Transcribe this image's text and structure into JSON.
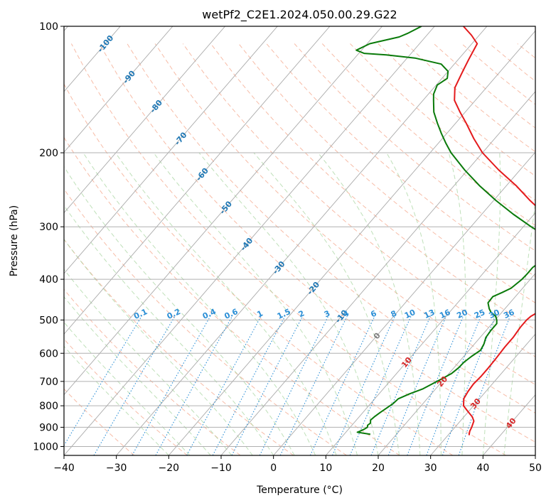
{
  "chart_data": {
    "type": "line",
    "subtype": "skew-T log-P thermodynamic diagram",
    "title": "wetPf2_C2E1.2024.050.00.29.G22",
    "xlabel": "Temperature (°C)",
    "ylabel": "Pressure (hPa)",
    "xlim": [
      -40,
      50
    ],
    "ylim_hpa": [
      1050,
      100
    ],
    "y_scale": "log",
    "grid": true,
    "x_ticks": [
      "−40",
      "−30",
      "−20",
      "−10",
      "0",
      "10",
      "20",
      "30",
      "40",
      "50"
    ],
    "y_ticks": [
      "100",
      "200",
      "300",
      "400",
      "500",
      "600",
      "700",
      "800",
      "900",
      "1000"
    ],
    "isotherm_labels": [
      "-100",
      "-90",
      "-80",
      "-70",
      "-60",
      "-50",
      "-40",
      "-30",
      "-20",
      "-10",
      "0",
      "10",
      "20",
      "30",
      "40"
    ],
    "mixing_ratio_labels": [
      "0.1",
      "0.2",
      "0.4",
      "0.6",
      "1",
      "1.5",
      "2",
      "3",
      "4",
      "6",
      "8",
      "10",
      "13",
      "16",
      "20",
      "25",
      "30",
      "36"
    ],
    "series": [
      {
        "role": "temperature",
        "color": "#e41a1c",
        "points": [
          [
            940,
            34.0
          ],
          [
            920,
            33.5
          ],
          [
            900,
            33.2
          ],
          [
            870,
            32.6
          ],
          [
            850,
            31.6
          ],
          [
            820,
            29.5
          ],
          [
            800,
            28.1
          ],
          [
            770,
            27.0
          ],
          [
            740,
            26.6
          ],
          [
            710,
            26.4
          ],
          [
            680,
            26.6
          ],
          [
            650,
            26.6
          ],
          [
            620,
            26.5
          ],
          [
            580,
            26.3
          ],
          [
            550,
            26.3
          ],
          [
            520,
            26.0
          ],
          [
            500,
            26.0
          ],
          [
            490,
            26.2
          ],
          [
            470,
            27.5
          ],
          [
            450,
            29.1
          ],
          [
            430,
            29.4
          ],
          [
            400,
            29.0
          ],
          [
            380,
            28.1
          ],
          [
            360,
            26.5
          ],
          [
            340,
            24.7
          ],
          [
            330,
            23.8
          ],
          [
            320,
            22.2
          ],
          [
            300,
            17.0
          ],
          [
            280,
            12.0
          ],
          [
            260,
            7.0
          ],
          [
            240,
            2.0
          ],
          [
            220,
            -4.0
          ],
          [
            200,
            -10.0
          ],
          [
            185,
            -14.0
          ],
          [
            170,
            -18.0
          ],
          [
            160,
            -21.0
          ],
          [
            150,
            -24.0
          ],
          [
            140,
            -26.0
          ],
          [
            130,
            -27.0
          ],
          [
            125,
            -27.5
          ],
          [
            120,
            -28.0
          ],
          [
            110,
            -29.0
          ],
          [
            105,
            -31.5
          ],
          [
            100,
            -34.5
          ]
        ]
      },
      {
        "role": "dewpoint",
        "color": "#0a7a0a",
        "points": [
          [
            935,
            15.0
          ],
          [
            925,
            12.2
          ],
          [
            920,
            12.5
          ],
          [
            910,
            13.0
          ],
          [
            900,
            13.3
          ],
          [
            890,
            13.0
          ],
          [
            880,
            13.2
          ],
          [
            865,
            12.7
          ],
          [
            850,
            12.9
          ],
          [
            830,
            13.3
          ],
          [
            810,
            13.8
          ],
          [
            790,
            14.3
          ],
          [
            770,
            14.5
          ],
          [
            750,
            15.8
          ],
          [
            730,
            17.5
          ],
          [
            710,
            18.5
          ],
          [
            690,
            19.5
          ],
          [
            670,
            20.5
          ],
          [
            650,
            20.9
          ],
          [
            630,
            21.0
          ],
          [
            610,
            21.5
          ],
          [
            590,
            22.2
          ],
          [
            570,
            21.8
          ],
          [
            550,
            21.1
          ],
          [
            530,
            20.9
          ],
          [
            510,
            20.9
          ],
          [
            500,
            20.3
          ],
          [
            490,
            19.5
          ],
          [
            480,
            18.0
          ],
          [
            470,
            17.0
          ],
          [
            455,
            15.8
          ],
          [
            440,
            15.7
          ],
          [
            430,
            16.8
          ],
          [
            420,
            17.8
          ],
          [
            400,
            18.4
          ],
          [
            390,
            18.5
          ],
          [
            375,
            18.5
          ],
          [
            355,
            19.5
          ],
          [
            340,
            19.6
          ],
          [
            330,
            19.2
          ],
          [
            320,
            17.0
          ],
          [
            300,
            11.5
          ],
          [
            280,
            6.0
          ],
          [
            260,
            0.5
          ],
          [
            240,
            -5.0
          ],
          [
            220,
            -10.5
          ],
          [
            200,
            -16.0
          ],
          [
            190,
            -18.5
          ],
          [
            180,
            -21.0
          ],
          [
            170,
            -23.5
          ],
          [
            160,
            -26.0
          ],
          [
            150,
            -28.0
          ],
          [
            145,
            -29.0
          ],
          [
            138,
            -29.8
          ],
          [
            133,
            -29.0
          ],
          [
            128,
            -30.0
          ],
          [
            123,
            -32.5
          ],
          [
            119,
            -38.5
          ],
          [
            117,
            -44.5
          ],
          [
            116,
            -49.0
          ],
          [
            114,
            -51.0
          ],
          [
            110,
            -49.5
          ],
          [
            106,
            -45.0
          ],
          [
            104,
            -44.0
          ],
          [
            100,
            -42.5
          ]
        ]
      }
    ]
  }
}
